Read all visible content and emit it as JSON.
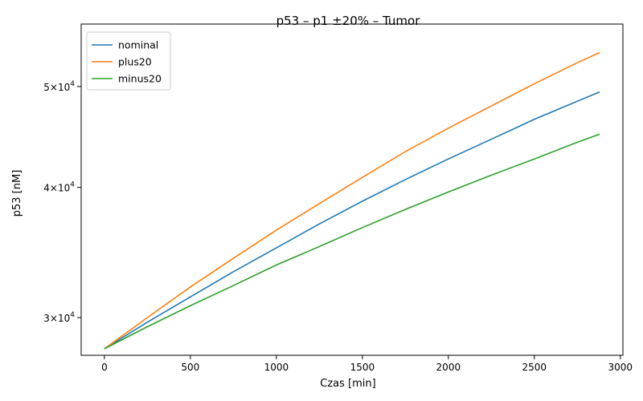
{
  "chart_data": {
    "type": "line",
    "title": "p53 – p1 ±20% – Tumor",
    "xlabel": "Czas [min]",
    "ylabel": "p53 [nM]",
    "xlim": [
      -135,
      3015
    ],
    "ylim": [
      27600,
      57400
    ],
    "yscale": "log",
    "grid": false,
    "legend_position": "top-left",
    "x_ticks": [
      0,
      500,
      1000,
      1500,
      2000,
      2500,
      3000
    ],
    "y_ticks": [
      {
        "value": 30000,
        "mantissa": "3",
        "base": "10",
        "exponent": "4"
      },
      {
        "value": 40000,
        "mantissa": "4",
        "base": "10",
        "exponent": "4"
      },
      {
        "value": 50000,
        "mantissa": "5",
        "base": "10",
        "exponent": "4"
      }
    ],
    "x": [
      0,
      250,
      500,
      750,
      1000,
      1250,
      1500,
      1750,
      2000,
      2250,
      2500,
      2750,
      2880
    ],
    "series": [
      {
        "name": "nominal",
        "color": "#1f77b4",
        "values": [
          28000,
          29700,
          31400,
          33200,
          35000,
          36900,
          38800,
          40700,
          42600,
          44500,
          46500,
          48400,
          49400
        ]
      },
      {
        "name": "plus20",
        "color": "#ff7f0e",
        "values": [
          28000,
          30000,
          32100,
          34200,
          36400,
          38600,
          40900,
          43300,
          45600,
          47900,
          50300,
          52700,
          53900
        ]
      },
      {
        "name": "minus20",
        "color": "#2ca02c",
        "values": [
          28000,
          29400,
          30800,
          32200,
          33700,
          35100,
          36600,
          38100,
          39600,
          41100,
          42600,
          44200,
          45000
        ]
      }
    ]
  }
}
